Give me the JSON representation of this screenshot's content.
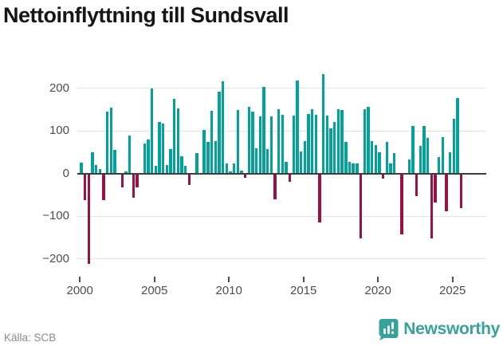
{
  "title": "Nettoinflyttning till Sundsvall",
  "footer": {
    "source": "Källa: SCB",
    "brand": "Newsworthy"
  },
  "colors": {
    "positive_bar": "#00a29a",
    "negative_bar": "#9b1045",
    "zero_axis": "#3d3d3d",
    "gridline": "#e3e3e3",
    "axis_text": "#4d4d4d",
    "title_text": "#161616",
    "source_text": "#8a8a8a",
    "brand_teal": "#35a39a"
  },
  "chart_data": {
    "type": "bar",
    "title": "Nettoinflyttning till Sundsvall",
    "x_unit": "quarter",
    "period_start": "2000 Q1",
    "period_end": "2025 Q3",
    "x_tick_labels": [
      "2000",
      "2005",
      "2010",
      "2015",
      "2020",
      "2025"
    ],
    "y_tick_values": [
      200,
      100,
      0,
      -100,
      -200
    ],
    "y_tick_labels": [
      "200",
      "100",
      "0",
      "−100",
      "−200"
    ],
    "ylim": [
      -245,
      248
    ],
    "grid": "horizontal",
    "legend": "none",
    "values_by_year": {
      "2000": [
        25,
        -60,
        -210,
        50
      ],
      "2001": [
        20,
        10,
        -60,
        145
      ],
      "2002": [
        155,
        55,
        0,
        -30
      ],
      "2003": [
        5,
        88,
        -55,
        -30
      ],
      "2004": [
        0,
        70,
        80,
        200
      ],
      "2005": [
        18,
        120,
        117,
        20
      ],
      "2006": [
        57,
        175,
        152,
        41
      ],
      "2007": [
        18,
        -25,
        0,
        47
      ],
      "2008": [
        0,
        101,
        73,
        147
      ],
      "2009": [
        75,
        192,
        215,
        24
      ],
      "2010": [
        5,
        23,
        149,
        7
      ],
      "2011": [
        -8,
        157,
        144,
        58
      ],
      "2012": [
        134,
        202,
        57,
        133
      ],
      "2013": [
        -59,
        150,
        138,
        28
      ],
      "2014": [
        -18,
        135,
        217,
        52
      ],
      "2015": [
        75,
        140,
        150,
        138
      ],
      "2016": [
        -114,
        232,
        135,
        105
      ],
      "2017": [
        120,
        151,
        149,
        73
      ],
      "2018": [
        28,
        23,
        24,
        -151
      ],
      "2019": [
        151,
        156,
        76,
        67
      ],
      "2020": [
        50,
        -11,
        73,
        23
      ],
      "2021": [
        47,
        0,
        -142,
        0
      ],
      "2022": [
        32,
        112,
        -52,
        65
      ],
      "2023": [
        112,
        84,
        -151,
        -67
      ],
      "2024": [
        39,
        85,
        -86,
        49
      ],
      "2025": [
        128,
        176,
        -80
      ]
    }
  }
}
